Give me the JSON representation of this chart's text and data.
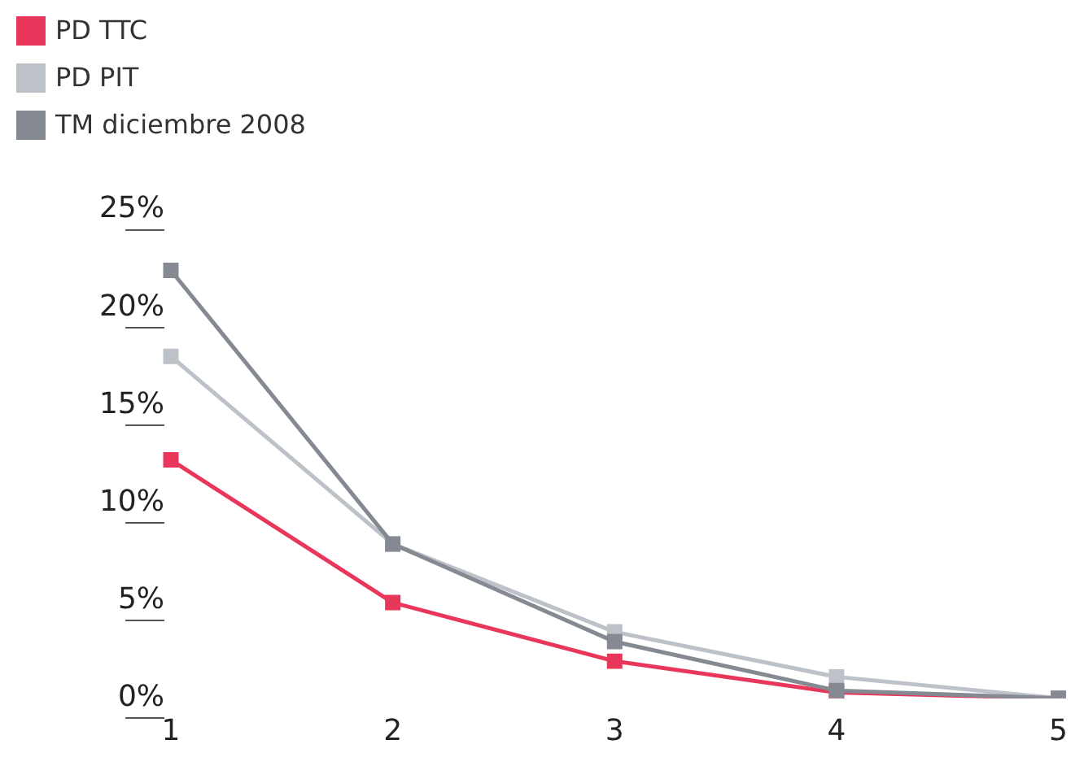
{
  "chart_data": {
    "type": "line",
    "categories": [
      "1",
      "2",
      "3",
      "4",
      "5"
    ],
    "series": [
      {
        "name": "PD TTC",
        "color": "#e8375a",
        "values": [
          12.2,
          4.9,
          1.9,
          0.3,
          0
        ]
      },
      {
        "name": "PD PIT",
        "color": "#bdc1c8",
        "values": [
          17.5,
          7.9,
          3.4,
          1.1,
          0
        ]
      },
      {
        "name": "TM diciembre 2008",
        "color": "#858a92",
        "values": [
          21.9,
          7.9,
          2.9,
          0.4,
          0
        ]
      }
    ],
    "ylim": [
      0,
      25
    ],
    "yticks": [
      {
        "value": 0,
        "label": "0%"
      },
      {
        "value": 5,
        "label": "5%"
      },
      {
        "value": 10,
        "label": "10%"
      },
      {
        "value": 15,
        "label": "15%"
      },
      {
        "value": 20,
        "label": "20%"
      },
      {
        "value": 25,
        "label": "25%"
      }
    ],
    "legend": "top left",
    "marker": "square",
    "line_style": "solid",
    "grid": false
  }
}
